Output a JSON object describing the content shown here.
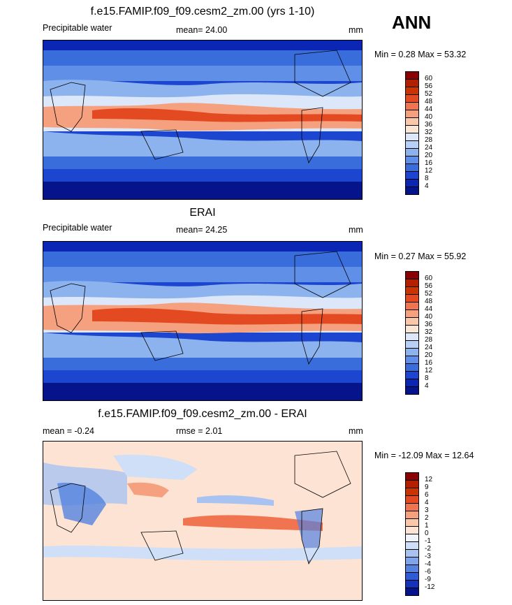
{
  "season": "ANN",
  "panels": [
    {
      "title": "f.e15.FAMIP.f09_f09.cesm2_zm.00 (yrs 1-10)",
      "left_label": "Precipitable water",
      "center_label": "mean=  24.00",
      "units": "mm",
      "minmax": "Min =   0.28 Max =  53.32",
      "colorbar_labels": [
        "60",
        "56",
        "52",
        "48",
        "44",
        "40",
        "36",
        "32",
        "28",
        "24",
        "20",
        "16",
        "12",
        "8",
        "4"
      ],
      "colorbar_colors": [
        "#8b0000",
        "#b22000",
        "#cc3300",
        "#e34a22",
        "#f0744f",
        "#f5a07e",
        "#fbc7a9",
        "#fbe6d6",
        "#dce8fa",
        "#b8d0f5",
        "#8db3ee",
        "#5f8fe6",
        "#3a6ddc",
        "#1c46cf",
        "#0b25b5",
        "#06148c"
      ]
    },
    {
      "title": "ERAI",
      "left_label": "Precipitable water",
      "center_label": "mean=  24.25",
      "units": "mm",
      "minmax": "Min =   0.27 Max =  55.92",
      "colorbar_labels": [
        "60",
        "56",
        "52",
        "48",
        "44",
        "40",
        "36",
        "32",
        "28",
        "24",
        "20",
        "16",
        "12",
        "8",
        "4"
      ],
      "colorbar_colors": [
        "#8b0000",
        "#b22000",
        "#cc3300",
        "#e34a22",
        "#f0744f",
        "#f5a07e",
        "#fbc7a9",
        "#fbe6d6",
        "#dce8fa",
        "#b8d0f5",
        "#8db3ee",
        "#5f8fe6",
        "#3a6ddc",
        "#1c46cf",
        "#0b25b5",
        "#06148c"
      ]
    },
    {
      "title": "f.e15.FAMIP.f09_f09.cesm2_zm.00 - ERAI",
      "left_label": "mean =  -0.24",
      "center_label": "rmse =   2.01",
      "units": "mm",
      "minmax": "Min = -12.09 Max =  12.64",
      "colorbar_labels": [
        "12",
        "9",
        "6",
        "4",
        "3",
        "2",
        "1",
        "0",
        "-1",
        "-2",
        "-3",
        "-4",
        "-6",
        "-9",
        "-12"
      ],
      "colorbar_colors": [
        "#8b0000",
        "#b22000",
        "#cc3300",
        "#e34a22",
        "#f0744f",
        "#f5a07e",
        "#fbc7a9",
        "#fde3d3",
        "#eef3fc",
        "#cfdff8",
        "#a8c3f2",
        "#7ea4ea",
        "#5482e0",
        "#2f5bd4",
        "#1532bd",
        "#06148c"
      ]
    }
  ]
}
